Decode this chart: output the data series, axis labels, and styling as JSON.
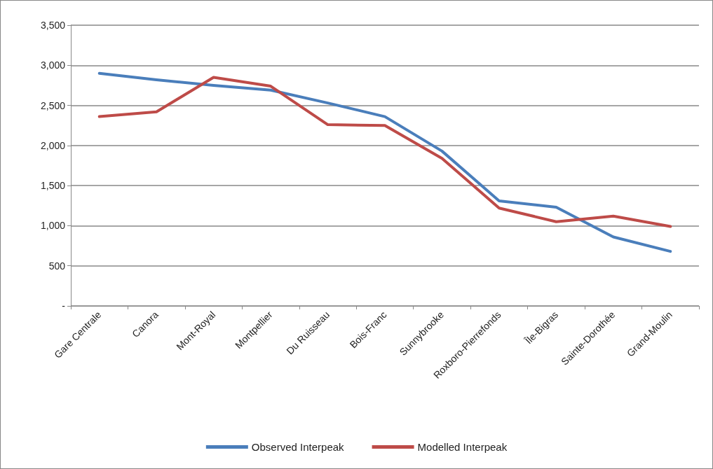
{
  "chart_data": {
    "type": "line",
    "categories": [
      "Gare Centrale",
      "Canora",
      "Mont-Royal",
      "Montpellier",
      "Du Ruisseau",
      "Bois-Franc",
      "Sunnybrooke",
      "Roxboro-Pierrefonds",
      "Île-Bigras",
      "Sainte-Dorothée",
      "Grand-Moulin"
    ],
    "series": [
      {
        "name": "Observed Interpeak",
        "color": "#4a7ebb",
        "values": [
          2900,
          2820,
          2750,
          2690,
          2530,
          2360,
          1930,
          1310,
          1230,
          860,
          680
        ]
      },
      {
        "name": "Modelled Interpeak",
        "color": "#be4b48",
        "values": [
          2360,
          2420,
          2850,
          2740,
          2260,
          2250,
          1840,
          1220,
          1050,
          1120,
          990
        ]
      }
    ],
    "ylim": [
      0,
      3500
    ],
    "yticks": [
      {
        "value": 0,
        "label": "-"
      },
      500,
      {
        "value": 1000,
        "label": "1,000"
      },
      {
        "value": 1500,
        "label": "1,500"
      },
      {
        "value": 2000,
        "label": "2,000"
      },
      {
        "value": 2500,
        "label": "2,500"
      },
      {
        "value": 3000,
        "label": "3,000"
      },
      {
        "value": 3500,
        "label": "3,500"
      }
    ],
    "grid": "y",
    "legend": "bottom",
    "marker": "none",
    "line_style": "solid"
  }
}
